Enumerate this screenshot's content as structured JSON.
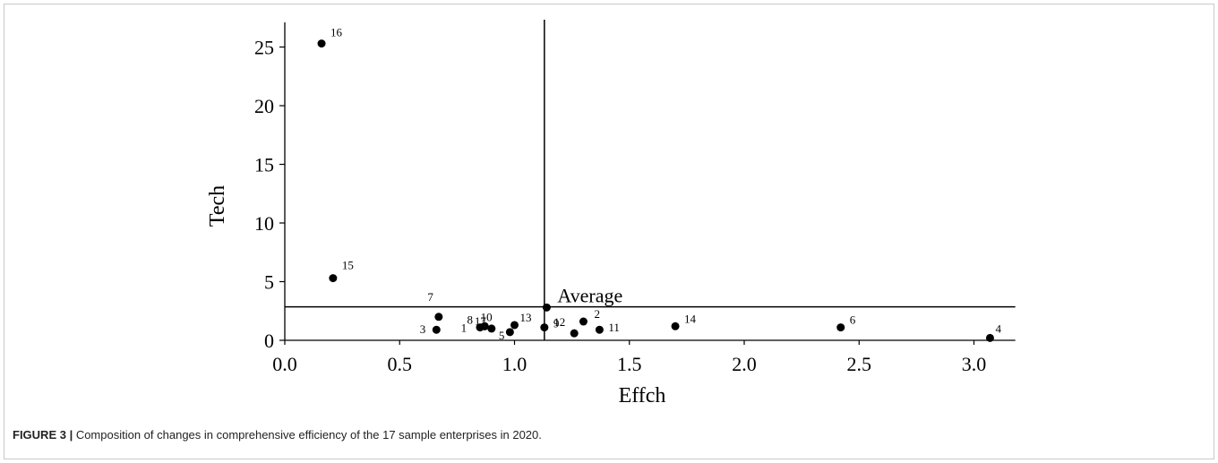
{
  "caption": {
    "figure_id": "FIGURE 3 |",
    "text": " Composition of changes in comprehensive efficiency of the 17 sample enterprises in 2020."
  },
  "chart_data": {
    "type": "scatter",
    "xlabel": "Effch",
    "ylabel": "Tech",
    "xlim": [
      0,
      3.18
    ],
    "ylim": [
      0,
      27
    ],
    "xticks": [
      "0.0",
      "0.5",
      "1.0",
      "1.5",
      "2.0",
      "2.5",
      "3.0"
    ],
    "yticks": [
      "0",
      "5",
      "10",
      "15",
      "20",
      "25"
    ],
    "grid": false,
    "marker_color": "#000000",
    "points": [
      {
        "label": "1",
        "x": 0.87,
        "y": 1.2
      },
      {
        "label": "2",
        "x": 1.3,
        "y": 1.6
      },
      {
        "label": "3",
        "x": 0.66,
        "y": 0.9
      },
      {
        "label": "4",
        "x": 3.07,
        "y": 0.2
      },
      {
        "label": "5",
        "x": 0.98,
        "y": 0.7
      },
      {
        "label": "6",
        "x": 2.42,
        "y": 1.1
      },
      {
        "label": "7",
        "x": 0.67,
        "y": 2.0
      },
      {
        "label": "8",
        "x": 0.85,
        "y": 1.1
      },
      {
        "label": "9",
        "x": 1.13,
        "y": 1.1
      },
      {
        "label": "10",
        "x": 0.87,
        "y": 1.2
      },
      {
        "label": "11",
        "x": 1.37,
        "y": 0.9
      },
      {
        "label": "12",
        "x": 1.26,
        "y": 0.6
      },
      {
        "label": "13",
        "x": 1.0,
        "y": 1.3
      },
      {
        "label": "14",
        "x": 1.7,
        "y": 1.2
      },
      {
        "label": "15",
        "x": 0.21,
        "y": 5.3
      },
      {
        "label": "16",
        "x": 0.16,
        "y": 25.3
      },
      {
        "label": "17",
        "x": 0.9,
        "y": 1.0
      }
    ],
    "average": {
      "label": "Average",
      "x": 1.14,
      "y": 2.8
    }
  }
}
